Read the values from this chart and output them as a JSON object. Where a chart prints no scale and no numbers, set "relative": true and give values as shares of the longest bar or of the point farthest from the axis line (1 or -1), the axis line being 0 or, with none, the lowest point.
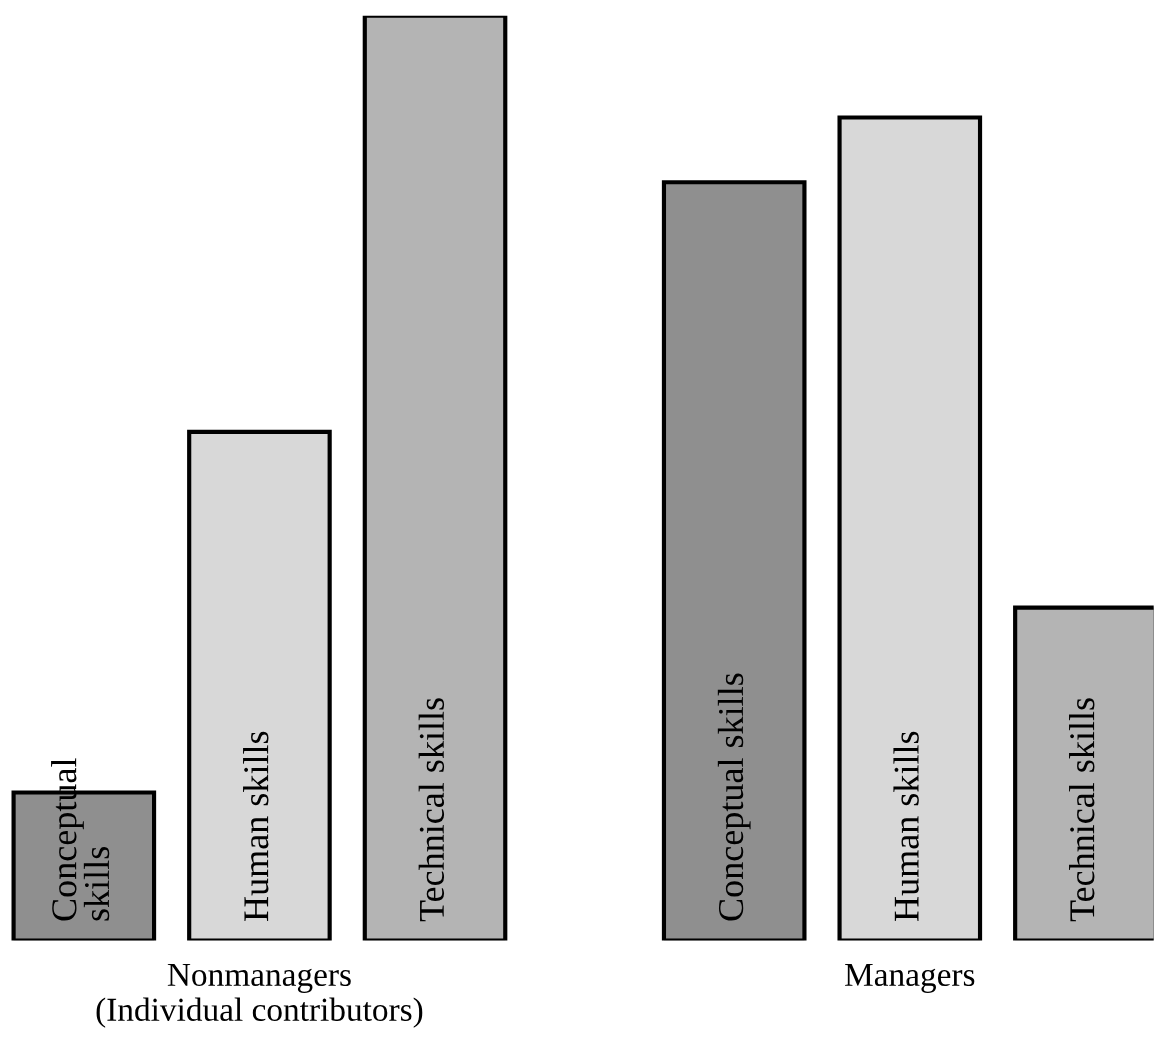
{
  "chart_data": {
    "type": "bar",
    "relative": true,
    "legend": false,
    "grid": false,
    "categories": [
      "Nonmanagers\n(Individual contributors)",
      "Managers"
    ],
    "series": [
      {
        "name": "Conceptual skills",
        "color": "#8f8f8f",
        "values": [
          0.16,
          0.82
        ]
      },
      {
        "name": "Human skills",
        "color": "#d8d8d8",
        "values": [
          0.55,
          0.89
        ]
      },
      {
        "name": "Technical skills",
        "color": "#b4b4b4",
        "values": [
          1.0,
          0.36
        ]
      }
    ]
  }
}
